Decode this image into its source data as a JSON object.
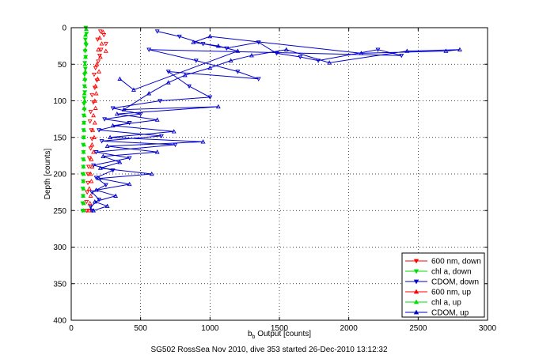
{
  "caption": "SG502 RossSea Nov 2010, dive 353 started 26-Dec-2010 13:12:32",
  "chart_data": {
    "type": "scatter",
    "xlabel_main": "b",
    "xlabel_sub": "b",
    "xlabel_rest": " Output [counts]",
    "ylabel": "Depth [counts]",
    "xlim": [
      0,
      3000
    ],
    "ylim": [
      0,
      400
    ],
    "y_reversed": true,
    "grid": true,
    "legend_position": "bottom-right",
    "x_ticks": [
      "0",
      "500",
      "1000",
      "1500",
      "2000",
      "2500",
      "3000"
    ],
    "y_ticks": [
      "0",
      "50",
      "100",
      "150",
      "200",
      "250",
      "300",
      "350",
      "400"
    ],
    "colors": {
      "red": "#ff0000",
      "green": "#00dd00",
      "blue": "#0000cc"
    },
    "series": [
      {
        "name": "600 nm, down",
        "color": "#ff0000",
        "marker": "triangle-down",
        "line": false,
        "points": [
          [
            210,
            5
          ],
          [
            235,
            10
          ],
          [
            190,
            16
          ],
          [
            250,
            22
          ],
          [
            215,
            30
          ],
          [
            205,
            38
          ],
          [
            195,
            46
          ],
          [
            175,
            55
          ],
          [
            165,
            64
          ],
          [
            185,
            72
          ],
          [
            170,
            82
          ],
          [
            150,
            92
          ],
          [
            160,
            102
          ],
          [
            140,
            115
          ],
          [
            135,
            128
          ],
          [
            145,
            140
          ],
          [
            150,
            152
          ],
          [
            140,
            165
          ],
          [
            130,
            178
          ],
          [
            125,
            190
          ],
          [
            120,
            200
          ],
          [
            120,
            212
          ],
          [
            115,
            225
          ],
          [
            110,
            238
          ],
          [
            110,
            250
          ]
        ]
      },
      {
        "name": "chl a, down",
        "color": "#00dd00",
        "marker": "triangle-down",
        "line": false,
        "points": [
          [
            105,
            0
          ],
          [
            110,
            8
          ],
          [
            102,
            16
          ],
          [
            108,
            24
          ],
          [
            100,
            32
          ],
          [
            104,
            40
          ],
          [
            98,
            48
          ],
          [
            102,
            56
          ],
          [
            96,
            64
          ],
          [
            100,
            72
          ],
          [
            95,
            80
          ],
          [
            98,
            88
          ],
          [
            94,
            96
          ],
          [
            92,
            104
          ],
          [
            95,
            112
          ],
          [
            90,
            120
          ],
          [
            92,
            130
          ],
          [
            88,
            140
          ],
          [
            90,
            150
          ],
          [
            86,
            160
          ],
          [
            88,
            170
          ],
          [
            85,
            180
          ],
          [
            87,
            190
          ],
          [
            84,
            200
          ],
          [
            86,
            210
          ],
          [
            83,
            220
          ],
          [
            85,
            230
          ],
          [
            82,
            240
          ],
          [
            84,
            250
          ]
        ]
      },
      {
        "name": "CDOM, down",
        "color": "#0000cc",
        "marker": "triangle-down",
        "line": true,
        "points": [
          [
            620,
            5
          ],
          [
            780,
            12
          ],
          [
            950,
            22
          ],
          [
            1120,
            28
          ],
          [
            1350,
            20
          ],
          [
            1480,
            35
          ],
          [
            1650,
            40
          ],
          [
            1780,
            45
          ],
          [
            2210,
            30
          ],
          [
            2380,
            38
          ],
          [
            560,
            30
          ],
          [
            900,
            45
          ],
          [
            1200,
            60
          ],
          [
            1350,
            70
          ],
          [
            700,
            60
          ],
          [
            850,
            80
          ],
          [
            1000,
            95
          ],
          [
            640,
            100
          ],
          [
            300,
            110
          ],
          [
            500,
            118
          ],
          [
            240,
            125
          ],
          [
            420,
            130
          ],
          [
            200,
            140
          ],
          [
            650,
            148
          ],
          [
            220,
            155
          ],
          [
            750,
            160
          ],
          [
            180,
            170
          ],
          [
            420,
            178
          ],
          [
            160,
            188
          ],
          [
            300,
            195
          ],
          [
            180,
            205
          ],
          [
            250,
            215
          ],
          [
            150,
            225
          ],
          [
            200,
            235
          ],
          [
            140,
            245
          ],
          [
            150,
            250
          ]
        ]
      },
      {
        "name": "600 nm, up",
        "color": "#ff0000",
        "marker": "triangle-up",
        "line": false,
        "points": [
          [
            130,
            250
          ],
          [
            135,
            240
          ],
          [
            140,
            230
          ],
          [
            130,
            220
          ],
          [
            145,
            210
          ],
          [
            140,
            200
          ],
          [
            150,
            190
          ],
          [
            145,
            180
          ],
          [
            160,
            170
          ],
          [
            150,
            160
          ],
          [
            165,
            150
          ],
          [
            155,
            140
          ],
          [
            170,
            130
          ],
          [
            160,
            120
          ],
          [
            175,
            110
          ],
          [
            170,
            100
          ],
          [
            180,
            90
          ],
          [
            175,
            80
          ],
          [
            190,
            70
          ],
          [
            200,
            60
          ],
          [
            185,
            50
          ],
          [
            210,
            40
          ],
          [
            195,
            30
          ],
          [
            220,
            22
          ],
          [
            205,
            14
          ],
          [
            230,
            6
          ],
          [
            250,
            32
          ]
        ]
      },
      {
        "name": "chl a, up",
        "color": "#00dd00",
        "marker": "triangle-up",
        "line": false,
        "points": [
          [
            88,
            250
          ],
          [
            90,
            240
          ],
          [
            86,
            230
          ],
          [
            89,
            220
          ],
          [
            87,
            210
          ],
          [
            90,
            200
          ],
          [
            88,
            190
          ],
          [
            91,
            180
          ],
          [
            89,
            170
          ],
          [
            92,
            160
          ],
          [
            90,
            150
          ],
          [
            93,
            140
          ],
          [
            91,
            130
          ],
          [
            95,
            120
          ],
          [
            93,
            110
          ],
          [
            97,
            100
          ],
          [
            95,
            90
          ],
          [
            99,
            80
          ],
          [
            97,
            70
          ],
          [
            101,
            60
          ],
          [
            99,
            50
          ],
          [
            103,
            40
          ],
          [
            101,
            30
          ],
          [
            105,
            20
          ],
          [
            103,
            10
          ],
          [
            108,
            2
          ]
        ]
      },
      {
        "name": "CDOM, up",
        "color": "#0000cc",
        "marker": "triangle-up",
        "line": true,
        "points": [
          [
            160,
            250
          ],
          [
            260,
            244
          ],
          [
            170,
            238
          ],
          [
            320,
            230
          ],
          [
            180,
            222
          ],
          [
            420,
            214
          ],
          [
            200,
            206
          ],
          [
            580,
            200
          ],
          [
            210,
            192
          ],
          [
            350,
            184
          ],
          [
            230,
            176
          ],
          [
            620,
            170
          ],
          [
            260,
            162
          ],
          [
            950,
            156
          ],
          [
            280,
            150
          ],
          [
            740,
            142
          ],
          [
            300,
            134
          ],
          [
            620,
            126
          ],
          [
            330,
            118
          ],
          [
            1060,
            108
          ],
          [
            380,
            112
          ],
          [
            560,
            90
          ],
          [
            700,
            75
          ],
          [
            820,
            65
          ],
          [
            1000,
            55
          ],
          [
            1150,
            45
          ],
          [
            1300,
            38
          ],
          [
            1550,
            30
          ],
          [
            1860,
            48
          ],
          [
            2420,
            32
          ],
          [
            2800,
            30
          ],
          [
            2700,
            32
          ],
          [
            2090,
            35
          ],
          [
            1000,
            12
          ],
          [
            880,
            20
          ],
          [
            1060,
            25
          ],
          [
            1200,
            32
          ],
          [
            450,
            85
          ],
          [
            350,
            70
          ]
        ]
      }
    ]
  }
}
